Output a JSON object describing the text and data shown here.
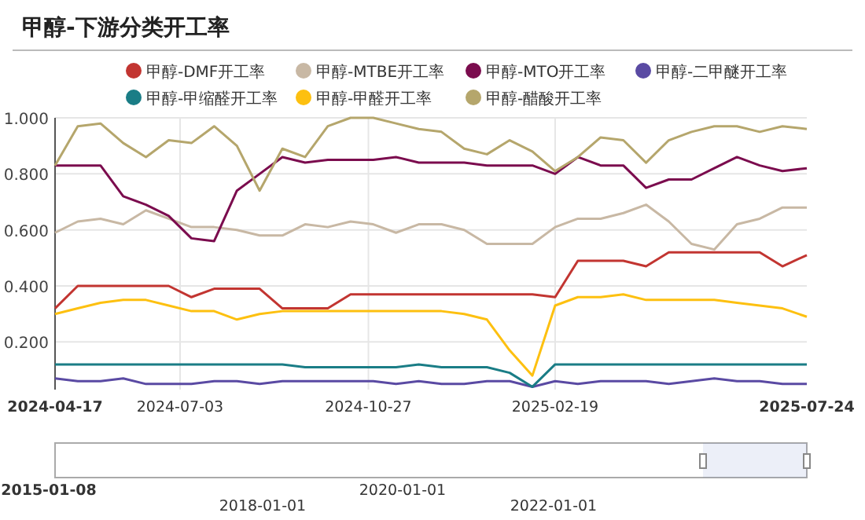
{
  "chart_data": {
    "type": "line",
    "title": "甲醇-下游分类开工率",
    "x": [
      "2024-04-17",
      "2024-05-01",
      "2024-05-15",
      "2024-05-29",
      "2024-06-12",
      "2024-06-26",
      "2024-07-10",
      "2024-07-24",
      "2024-08-07",
      "2024-08-21",
      "2024-09-04",
      "2024-09-18",
      "2024-10-02",
      "2024-10-16",
      "2024-10-30",
      "2024-11-13",
      "2024-11-27",
      "2024-12-11",
      "2024-12-25",
      "2025-01-08",
      "2025-01-22",
      "2025-02-05",
      "2025-02-19",
      "2025-03-05",
      "2025-03-19",
      "2025-04-02",
      "2025-04-16",
      "2025-04-30",
      "2025-05-14",
      "2025-05-28",
      "2025-06-11",
      "2025-06-25",
      "2025-07-09",
      "2025-07-24"
    ],
    "series": [
      {
        "name": "甲醇-DMF开工率",
        "color": "#c23531",
        "values": [
          0.32,
          0.4,
          0.4,
          0.4,
          0.4,
          0.4,
          0.36,
          0.39,
          0.39,
          0.39,
          0.32,
          0.32,
          0.32,
          0.37,
          0.37,
          0.37,
          0.37,
          0.37,
          0.37,
          0.37,
          0.37,
          0.37,
          0.36,
          0.49,
          0.49,
          0.49,
          0.47,
          0.52,
          0.52,
          0.52,
          0.52,
          0.52,
          0.47,
          0.51
        ]
      },
      {
        "name": "甲醇-MTBE开工率",
        "color": "#c8b8a4",
        "values": [
          0.59,
          0.63,
          0.64,
          0.62,
          0.67,
          0.64,
          0.61,
          0.61,
          0.6,
          0.58,
          0.58,
          0.62,
          0.61,
          0.63,
          0.62,
          0.59,
          0.62,
          0.62,
          0.6,
          0.55,
          0.55,
          0.55,
          0.61,
          0.64,
          0.64,
          0.66,
          0.69,
          0.63,
          0.55,
          0.53,
          0.62,
          0.64,
          0.68,
          0.68
        ]
      },
      {
        "name": "甲醇-MTO开工率",
        "color": "#7b0c4e",
        "values": [
          0.83,
          0.83,
          0.83,
          0.72,
          0.69,
          0.65,
          0.57,
          0.56,
          0.74,
          0.8,
          0.86,
          0.84,
          0.85,
          0.85,
          0.85,
          0.86,
          0.84,
          0.84,
          0.84,
          0.83,
          0.83,
          0.83,
          0.8,
          0.86,
          0.83,
          0.83,
          0.75,
          0.78,
          0.78,
          0.82,
          0.86,
          0.83,
          0.81,
          0.82
        ]
      },
      {
        "name": "甲醇-二甲醚开工率",
        "color": "#5a4aa3",
        "values": [
          0.07,
          0.06,
          0.06,
          0.07,
          0.05,
          0.05,
          0.05,
          0.06,
          0.06,
          0.05,
          0.06,
          0.06,
          0.06,
          0.06,
          0.06,
          0.05,
          0.06,
          0.05,
          0.05,
          0.06,
          0.06,
          0.04,
          0.06,
          0.05,
          0.06,
          0.06,
          0.06,
          0.05,
          0.06,
          0.07,
          0.06,
          0.06,
          0.05,
          0.05
        ]
      },
      {
        "name": "甲醇-甲缩醛开工率",
        "color": "#1a7d86",
        "values": [
          0.12,
          0.12,
          0.12,
          0.12,
          0.12,
          0.12,
          0.12,
          0.12,
          0.12,
          0.12,
          0.12,
          0.11,
          0.11,
          0.11,
          0.11,
          0.11,
          0.12,
          0.11,
          0.11,
          0.11,
          0.09,
          0.04,
          0.12,
          0.12,
          0.12,
          0.12,
          0.12,
          0.12,
          0.12,
          0.12,
          0.12,
          0.12,
          0.12,
          0.12
        ]
      },
      {
        "name": "甲醇-甲醛开工率",
        "color": "#fdc010",
        "values": [
          0.3,
          0.32,
          0.34,
          0.35,
          0.35,
          0.33,
          0.31,
          0.31,
          0.28,
          0.3,
          0.31,
          0.31,
          0.31,
          0.31,
          0.31,
          0.31,
          0.31,
          0.31,
          0.3,
          0.28,
          0.17,
          0.08,
          0.33,
          0.36,
          0.36,
          0.37,
          0.35,
          0.35,
          0.35,
          0.35,
          0.34,
          0.33,
          0.32,
          0.29
        ]
      },
      {
        "name": "甲醇-醋酸开工率",
        "color": "#b5a66c",
        "values": [
          0.83,
          0.97,
          0.98,
          0.91,
          0.86,
          0.92,
          0.91,
          0.97,
          0.9,
          0.74,
          0.89,
          0.86,
          0.97,
          1.0,
          1.0,
          0.98,
          0.96,
          0.95,
          0.89,
          0.87,
          0.92,
          0.88,
          0.81,
          0.86,
          0.93,
          0.92,
          0.84,
          0.92,
          0.95,
          0.97,
          0.97,
          0.95,
          0.97,
          0.96
        ]
      }
    ],
    "xlim": [
      "2024-04-17",
      "2025-07-24"
    ],
    "xticks": [
      {
        "value": "2024-04-17",
        "label": "2024-04-17"
      },
      {
        "value": "2024-07-03",
        "label": "2024-07-03"
      },
      {
        "value": "2024-10-27",
        "label": "2024-10-27"
      },
      {
        "value": "2025-02-19",
        "label": "2025-02-19"
      },
      {
        "value": "2025-07-24",
        "label": "2025-07-24"
      }
    ],
    "ylim": [
      0.03,
      1.0
    ],
    "yticks": [
      {
        "value": 0.2,
        "label": "0.200"
      },
      {
        "value": 0.4,
        "label": "0.400"
      },
      {
        "value": 0.6,
        "label": "0.600"
      },
      {
        "value": 0.8,
        "label": "0.800"
      },
      {
        "value": 1.0,
        "label": "1.000"
      }
    ],
    "grid": true,
    "legend": "top",
    "marker": "none",
    "line_style": "solid",
    "annotations": [
      "2015-01-08",
      "2018-01-01",
      "2020-01-01",
      "2022-01-01"
    ]
  }
}
